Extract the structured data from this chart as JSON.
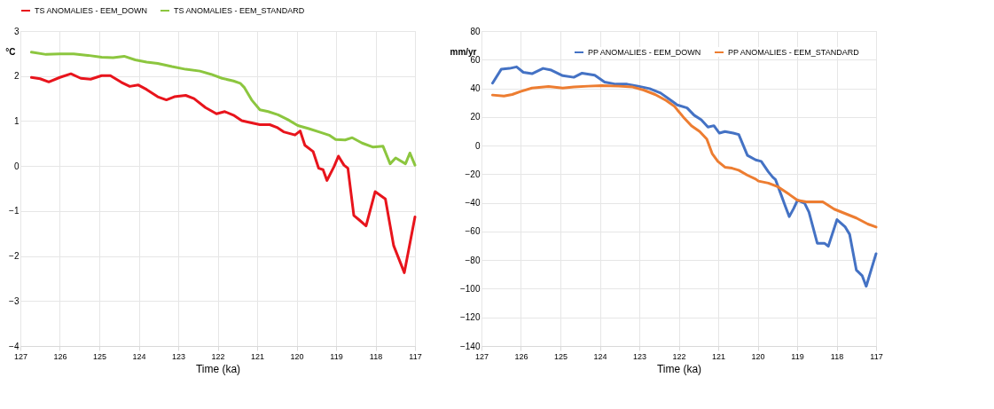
{
  "chart_data": [
    {
      "type": "line",
      "xlabel": "Time (ka)",
      "ylabel": "°C",
      "xlim": [
        127,
        117
      ],
      "xticks": [
        127,
        126,
        125,
        124,
        123,
        122,
        121,
        120,
        119,
        118,
        117
      ],
      "ylim": [
        -4,
        3
      ],
      "yticks": [
        -4,
        -3,
        -2,
        -1,
        0,
        1,
        2,
        3
      ],
      "grid": true,
      "legend": "top",
      "marker": "none",
      "line_style": "solid",
      "series": [
        {
          "name": "TS ANOMALIES - EEM_DOWN",
          "color": "#e8141c",
          "x": [
            126.72,
            126.5,
            126.28,
            126.0,
            125.72,
            125.47,
            125.22,
            124.94,
            124.72,
            124.44,
            124.23,
            124.01,
            123.8,
            123.52,
            123.3,
            123.1,
            122.81,
            122.6,
            122.31,
            122.03,
            121.82,
            121.6,
            121.39,
            121.14,
            120.93,
            120.68,
            120.5,
            120.33,
            120.04,
            119.91,
            119.79,
            119.58,
            119.44,
            119.33,
            119.23,
            119.05,
            118.94,
            118.8,
            118.7,
            118.55,
            118.41,
            118.24,
            118.01,
            117.75,
            117.54,
            117.27,
            117.0
          ],
          "values": [
            1.97,
            1.94,
            1.87,
            1.97,
            2.05,
            1.95,
            1.93,
            2.01,
            2.01,
            1.86,
            1.77,
            1.8,
            1.7,
            1.54,
            1.47,
            1.54,
            1.57,
            1.5,
            1.3,
            1.16,
            1.21,
            1.13,
            1.01,
            0.96,
            0.92,
            0.92,
            0.86,
            0.76,
            0.69,
            0.78,
            0.46,
            0.32,
            -0.05,
            -0.08,
            -0.32,
            -0.01,
            0.22,
            0.02,
            -0.05,
            -1.1,
            -1.2,
            -1.33,
            -0.57,
            -0.73,
            -1.77,
            -2.37,
            -1.13
          ]
        },
        {
          "name": "TS ANOMALIES - EEM_STANDARD",
          "color": "#8cc63f",
          "x": [
            126.72,
            126.35,
            126.0,
            125.65,
            125.29,
            124.94,
            124.65,
            124.37,
            124.09,
            123.8,
            123.52,
            123.16,
            122.81,
            122.45,
            122.17,
            121.89,
            121.6,
            121.43,
            121.32,
            121.14,
            120.93,
            120.72,
            120.47,
            120.22,
            119.97,
            119.69,
            119.4,
            119.16,
            119.01,
            118.77,
            118.59,
            118.34,
            118.06,
            117.81,
            117.63,
            117.49,
            117.24,
            117.13,
            117.0
          ],
          "values": [
            2.53,
            2.48,
            2.49,
            2.49,
            2.46,
            2.42,
            2.41,
            2.44,
            2.36,
            2.31,
            2.28,
            2.21,
            2.15,
            2.11,
            2.04,
            1.95,
            1.89,
            1.84,
            1.74,
            1.47,
            1.25,
            1.21,
            1.14,
            1.03,
            0.9,
            0.83,
            0.75,
            0.68,
            0.59,
            0.58,
            0.63,
            0.51,
            0.42,
            0.44,
            0.05,
            0.18,
            0.05,
            0.29,
            0.02
          ]
        }
      ]
    },
    {
      "type": "line",
      "xlabel": "Time (ka)",
      "ylabel": "mm/yr",
      "xlim": [
        127,
        117
      ],
      "xticks": [
        127,
        126,
        125,
        124,
        123,
        122,
        121,
        120,
        119,
        118,
        117
      ],
      "ylim": [
        -140,
        80
      ],
      "yticks": [
        -140,
        -120,
        -100,
        -80,
        -60,
        -40,
        -20,
        0,
        20,
        40,
        60,
        80
      ],
      "grid": true,
      "legend": "top right",
      "marker": "none",
      "line_style": "solid",
      "series": [
        {
          "name": "PP ANOMALIES - EEM_DOWN",
          "color": "#4472c4",
          "x": [
            126.72,
            126.5,
            126.29,
            126.11,
            125.94,
            125.72,
            125.44,
            125.23,
            124.94,
            124.66,
            124.45,
            124.13,
            123.88,
            123.6,
            123.31,
            123.03,
            122.74,
            122.46,
            122.25,
            122.04,
            121.79,
            121.61,
            121.43,
            121.26,
            121.11,
            120.97,
            120.83,
            120.62,
            120.48,
            120.26,
            120.05,
            119.91,
            119.73,
            119.62,
            119.55,
            119.41,
            119.3,
            119.2,
            119.09,
            118.99,
            118.81,
            118.7,
            118.49,
            118.31,
            118.21,
            117.99,
            117.78,
            117.67,
            117.5,
            117.35,
            117.25,
            117.0
          ],
          "values": [
            43.6,
            53.3,
            53.9,
            55.0,
            51.2,
            50.2,
            53.9,
            52.7,
            48.8,
            47.7,
            50.6,
            49.2,
            44.4,
            42.9,
            42.9,
            41.5,
            39.8,
            36.7,
            32.6,
            28.4,
            26.3,
            21.2,
            18.0,
            12.9,
            13.9,
            8.7,
            9.8,
            8.7,
            7.7,
            -6.8,
            -10.0,
            -11.0,
            -18.3,
            -22.0,
            -23.7,
            -34.1,
            -42.4,
            -49.6,
            -44.0,
            -38.2,
            -40.3,
            -46.5,
            -68.2,
            -68.2,
            -70.3,
            -51.7,
            -56.9,
            -62.0,
            -86.9,
            -91.0,
            -98.3,
            -75.5
          ]
        },
        {
          "name": "PP ANOMALIES - EEM_STANDARD",
          "color": "#ed7d31",
          "x": [
            126.72,
            126.43,
            126.22,
            126.01,
            125.72,
            125.3,
            124.94,
            124.66,
            124.3,
            123.95,
            123.52,
            123.17,
            122.89,
            122.6,
            122.32,
            122.11,
            121.89,
            121.68,
            121.47,
            121.29,
            121.15,
            121.01,
            120.83,
            120.65,
            120.48,
            120.26,
            120.05,
            119.98,
            119.73,
            119.48,
            119.2,
            118.99,
            118.77,
            118.35,
            118.06,
            117.78,
            117.5,
            117.21,
            117.0
          ],
          "values": [
            35.3,
            34.6,
            35.7,
            37.8,
            40.2,
            41.3,
            40.2,
            40.9,
            41.5,
            41.9,
            41.5,
            40.9,
            38.8,
            35.7,
            31.5,
            27.4,
            20.1,
            13.9,
            9.8,
            4.6,
            -5.8,
            -11.0,
            -15.1,
            -15.8,
            -17.2,
            -20.7,
            -23.4,
            -24.8,
            -26.2,
            -28.9,
            -34.1,
            -38.2,
            -39.3,
            -39.3,
            -44.4,
            -47.5,
            -50.6,
            -54.8,
            -56.9
          ]
        }
      ]
    }
  ]
}
